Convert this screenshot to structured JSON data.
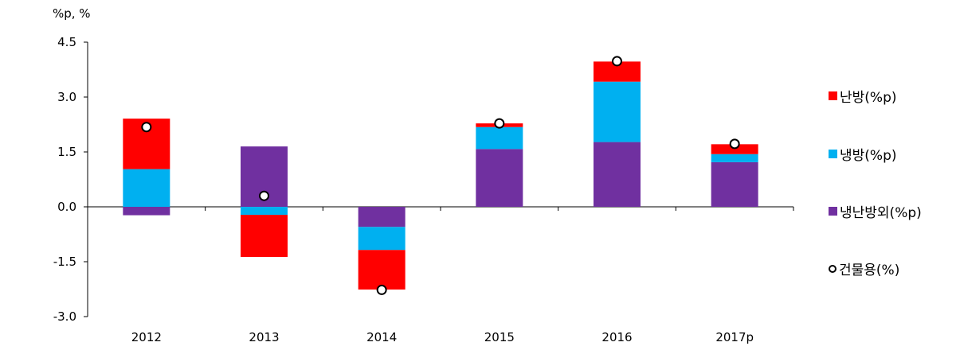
{
  "chart_data": {
    "type": "bar",
    "stacked": true,
    "unit_label": "%p, %",
    "categories": [
      "2012",
      "2013",
      "2014",
      "2015",
      "2016",
      "2017p"
    ],
    "ylim": [
      -3.0,
      4.5
    ],
    "yticks": [
      "4.5",
      "3.0",
      "1.5",
      "0.0",
      "-1.5",
      "-3.0"
    ],
    "series": [
      {
        "name": "냉난방외(%p)",
        "color": "#7030a0",
        "values": [
          -0.23,
          1.65,
          -0.55,
          1.58,
          1.77,
          1.22
        ]
      },
      {
        "name": "냉방(%p)",
        "color": "#00b0f0",
        "values": [
          1.03,
          -0.22,
          -0.63,
          0.6,
          1.65,
          0.22
        ]
      },
      {
        "name": "난방(%p)",
        "color": "#ff0000",
        "values": [
          1.38,
          -1.15,
          -1.08,
          0.1,
          0.55,
          0.27
        ]
      }
    ],
    "line_series": {
      "name": "건물용(%)",
      "values": [
        2.18,
        0.3,
        -2.27,
        2.28,
        3.98,
        1.72
      ]
    },
    "grid": false,
    "legend_position": "right"
  }
}
